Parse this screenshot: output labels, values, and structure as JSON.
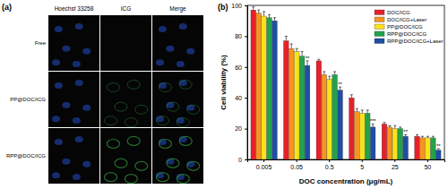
{
  "image_panel": {
    "label": "(a)",
    "columns": [
      "Hoechst 33258",
      "ICG",
      "Merge"
    ],
    "rows": [
      "Free",
      "PP@DOC/ICG",
      "RPP@DOC/ICG"
    ]
  },
  "chart_data": {
    "type": "bar",
    "title": "(b)",
    "x_label": "DOC concentration (μg/mL)",
    "y_label": "Cell viability (%)",
    "categories": [
      "0.005",
      "0.05",
      "0.5",
      "5",
      "25",
      "50"
    ],
    "series": [
      {
        "name": "DOC/ICG",
        "color": "#e8202a",
        "values": [
          97,
          77,
          64,
          40,
          23,
          15
        ],
        "errors": [
          2,
          3,
          1,
          2,
          1,
          1
        ]
      },
      {
        "name": "DOC/ICG+Laser",
        "color": "#f7941d",
        "values": [
          95,
          72,
          55,
          31,
          21,
          14
        ],
        "errors": [
          2,
          3,
          2,
          2,
          1,
          1
        ]
      },
      {
        "name": "PP@DOC/ICG",
        "color": "#f9e21b",
        "values": [
          93,
          70,
          52,
          30,
          20,
          14
        ],
        "errors": [
          3,
          2,
          2,
          2,
          2,
          1
        ]
      },
      {
        "name": "RPP@DOC/ICG",
        "color": "#22a34a",
        "values": [
          92,
          67,
          55,
          30,
          20,
          14
        ],
        "errors": [
          2,
          3,
          2,
          2,
          1,
          1
        ]
      },
      {
        "name": "RPP@DOC/ICG+Laser",
        "color": "#1f4fa3",
        "values": [
          90,
          61,
          45,
          21,
          15,
          6
        ],
        "errors": [
          2,
          3,
          2,
          2,
          1,
          1
        ],
        "significance": [
          null,
          "**",
          "**",
          "***",
          "**",
          "**"
        ]
      }
    ],
    "ylim": [
      0,
      100
    ],
    "yticks": [
      0,
      20,
      40,
      60,
      80,
      100
    ],
    "grid": false,
    "legend": "upper right"
  }
}
